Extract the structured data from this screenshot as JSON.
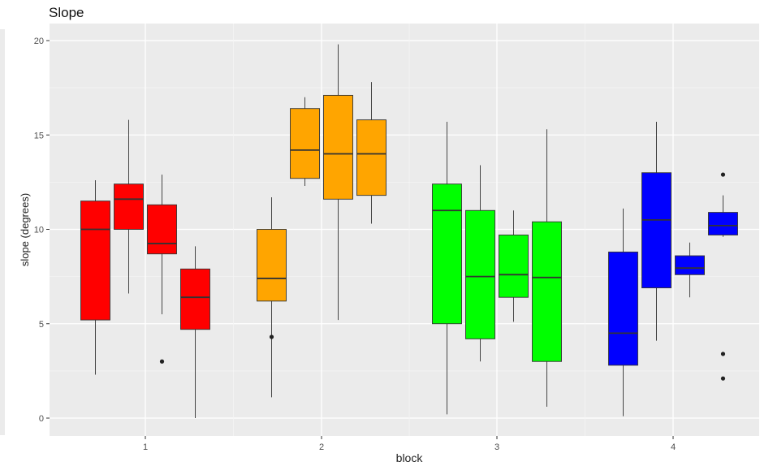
{
  "chart_data": {
    "type": "boxplot",
    "title": "Slope",
    "xlabel": "block",
    "ylabel": "slope (degrees)",
    "categories": [
      "1",
      "2",
      "3",
      "4"
    ],
    "ylim": [
      -1,
      21
    ],
    "yticks": [
      0,
      5,
      10,
      15,
      20
    ],
    "grid": true,
    "legend": "none",
    "group_colors": [
      "#ff0000",
      "#ffa500",
      "#00ff00",
      "#0000ff"
    ],
    "boxes_per_category": 4,
    "groups": [
      {
        "category": "1",
        "color": "#ff0000",
        "boxes": [
          {
            "min": 2.3,
            "q1": 5.2,
            "median": 10.0,
            "q3": 11.5,
            "max": 12.6,
            "outliers": []
          },
          {
            "min": 6.6,
            "q1": 10.0,
            "median": 11.6,
            "q3": 12.4,
            "max": 15.8,
            "outliers": []
          },
          {
            "min": 5.5,
            "q1": 8.7,
            "median": 9.25,
            "q3": 11.3,
            "max": 12.9,
            "outliers": [
              3.0
            ]
          },
          {
            "min": 0.0,
            "q1": 4.7,
            "median": 6.4,
            "q3": 7.9,
            "max": 9.1,
            "outliers": []
          }
        ]
      },
      {
        "category": "2",
        "color": "#ffa500",
        "boxes": [
          {
            "min": 1.1,
            "q1": 6.2,
            "median": 7.4,
            "q3": 10.0,
            "max": 11.7,
            "outliers": [
              4.3
            ]
          },
          {
            "min": 12.3,
            "q1": 12.7,
            "median": 14.2,
            "q3": 16.4,
            "max": 17.0,
            "outliers": []
          },
          {
            "min": 5.2,
            "q1": 11.6,
            "median": 14.0,
            "q3": 17.1,
            "max": 19.8,
            "outliers": []
          },
          {
            "min": 10.3,
            "q1": 11.8,
            "median": 14.0,
            "q3": 15.8,
            "max": 17.8,
            "outliers": []
          }
        ]
      },
      {
        "category": "3",
        "color": "#00ff00",
        "boxes": [
          {
            "min": 0.2,
            "q1": 5.0,
            "median": 11.0,
            "q3": 12.4,
            "max": 15.7,
            "outliers": []
          },
          {
            "min": 3.0,
            "q1": 4.2,
            "median": 7.5,
            "q3": 11.0,
            "max": 13.4,
            "outliers": []
          },
          {
            "min": 5.1,
            "q1": 6.4,
            "median": 7.6,
            "q3": 9.7,
            "max": 11.0,
            "outliers": []
          },
          {
            "min": 0.6,
            "q1": 3.0,
            "median": 7.45,
            "q3": 10.4,
            "max": 15.3,
            "outliers": []
          }
        ]
      },
      {
        "category": "4",
        "color": "#0000ff",
        "boxes": [
          {
            "min": 0.1,
            "q1": 2.8,
            "median": 4.5,
            "q3": 8.8,
            "max": 11.1,
            "outliers": []
          },
          {
            "min": 4.1,
            "q1": 6.9,
            "median": 10.5,
            "q3": 13.0,
            "max": 15.7,
            "outliers": []
          },
          {
            "min": 6.4,
            "q1": 7.6,
            "median": 7.95,
            "q3": 8.6,
            "max": 9.3,
            "outliers": []
          },
          {
            "min": 9.6,
            "q1": 9.7,
            "median": 10.2,
            "q3": 10.9,
            "max": 11.8,
            "outliers": [
              12.9,
              3.4,
              2.1
            ]
          }
        ]
      }
    ]
  }
}
